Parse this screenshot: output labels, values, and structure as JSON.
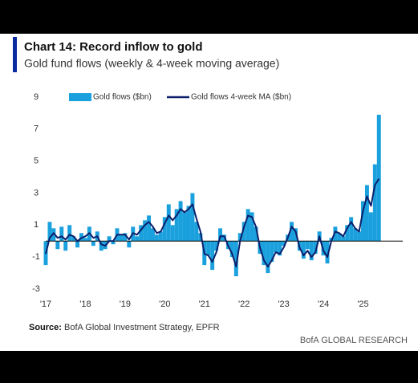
{
  "chart_data": {
    "type": "bar",
    "title": "Chart 14: Record inflow to gold",
    "subtitle": "Gold fund flows (weekly & 4-week moving average)",
    "source_label": "Source:",
    "source": "BofA Global Investment Strategy, EPFR",
    "brand": "BofA GLOBAL RESEARCH",
    "x": [
      2017.0,
      2017.1,
      2017.2,
      2017.3,
      2017.4,
      2017.5,
      2017.6,
      2017.7,
      2017.8,
      2017.9,
      2018.0,
      2018.1,
      2018.2,
      2018.3,
      2018.4,
      2018.5,
      2018.6,
      2018.7,
      2018.8,
      2018.9,
      2019.0,
      2019.1,
      2019.2,
      2019.3,
      2019.4,
      2019.5,
      2019.6,
      2019.7,
      2019.8,
      2019.9,
      2020.0,
      2020.1,
      2020.2,
      2020.3,
      2020.4,
      2020.5,
      2020.6,
      2020.7,
      2020.8,
      2020.9,
      2021.0,
      2021.1,
      2021.2,
      2021.3,
      2021.4,
      2021.5,
      2021.6,
      2021.7,
      2021.8,
      2021.9,
      2022.0,
      2022.1,
      2022.2,
      2022.3,
      2022.4,
      2022.5,
      2022.6,
      2022.7,
      2022.8,
      2022.9,
      2023.0,
      2023.1,
      2023.2,
      2023.3,
      2023.4,
      2023.5,
      2023.6,
      2023.7,
      2023.8,
      2023.9,
      2024.0,
      2024.1,
      2024.2,
      2024.3,
      2024.4,
      2024.5,
      2024.6,
      2024.7,
      2024.8,
      2024.9,
      2025.0,
      2025.1,
      2025.2,
      2025.3,
      2025.4
    ],
    "series": [
      {
        "name": "Gold flows ($bn)",
        "type": "bar",
        "color": "#1aa0dc",
        "values": [
          -1.5,
          1.2,
          0.8,
          -0.5,
          0.9,
          -0.6,
          1.0,
          0.3,
          -0.4,
          0.5,
          0.2,
          0.9,
          -0.3,
          0.6,
          -0.6,
          -0.5,
          0.3,
          -0.2,
          0.8,
          0.4,
          0.5,
          -0.4,
          0.9,
          0.3,
          1.0,
          1.3,
          1.6,
          0.8,
          0.4,
          0.6,
          1.5,
          2.3,
          1.0,
          2.0,
          2.5,
          1.8,
          2.2,
          3.0,
          1.2,
          0.5,
          -1.5,
          -0.9,
          -1.8,
          -0.6,
          0.8,
          0.4,
          -0.5,
          -1.0,
          -2.2,
          0.5,
          1.2,
          2.0,
          1.8,
          0.9,
          -0.8,
          -1.5,
          -2.0,
          -1.3,
          -0.7,
          -0.9,
          -0.3,
          0.4,
          1.2,
          0.8,
          -0.6,
          -1.1,
          -0.5,
          -1.2,
          -0.8,
          0.6,
          -0.9,
          -1.4,
          0.2,
          0.9,
          0.5,
          0.3,
          1.0,
          1.5,
          0.8,
          0.6,
          2.5,
          3.5,
          1.8,
          4.8,
          7.9
        ]
      },
      {
        "name": "Gold flows 4-week MA ($bn)",
        "type": "line",
        "color": "#0b1f6b",
        "values": [
          -0.8,
          0.2,
          0.5,
          0.2,
          0.3,
          0.1,
          0.4,
          0.3,
          0.0,
          0.2,
          0.3,
          0.5,
          0.2,
          0.3,
          -0.2,
          -0.3,
          0.0,
          0.0,
          0.4,
          0.4,
          0.4,
          0.1,
          0.5,
          0.4,
          0.7,
          1.0,
          1.2,
          0.9,
          0.5,
          0.6,
          1.1,
          1.6,
          1.3,
          1.6,
          2.0,
          1.8,
          2.0,
          2.3,
          1.4,
          0.6,
          -0.8,
          -0.9,
          -1.3,
          -0.7,
          0.3,
          0.3,
          -0.3,
          -0.8,
          -1.6,
          0.0,
          0.9,
          1.6,
          1.5,
          0.9,
          -0.4,
          -1.2,
          -1.6,
          -1.2,
          -0.7,
          -0.8,
          -0.4,
          0.2,
          0.9,
          0.6,
          -0.4,
          -0.9,
          -0.6,
          -1.0,
          -0.7,
          0.3,
          -0.6,
          -1.0,
          0.0,
          0.6,
          0.5,
          0.3,
          0.8,
          1.2,
          0.8,
          0.6,
          1.9,
          2.8,
          2.2,
          3.5,
          3.9
        ]
      }
    ],
    "xlim": [
      2017,
      2025.9
    ],
    "xticks": [
      {
        "value": 2017,
        "label": "'17"
      },
      {
        "value": 2018,
        "label": "'18"
      },
      {
        "value": 2019,
        "label": "'19"
      },
      {
        "value": 2020,
        "label": "'20"
      },
      {
        "value": 2021,
        "label": "'21"
      },
      {
        "value": 2022,
        "label": "'22"
      },
      {
        "value": 2023,
        "label": "'23"
      },
      {
        "value": 2024,
        "label": "'24"
      },
      {
        "value": 2025,
        "label": "'25"
      }
    ],
    "ylim": [
      -3,
      9
    ],
    "yticks": [
      -3,
      -1,
      1,
      3,
      5,
      7,
      9
    ],
    "grid": false,
    "legend": "top"
  }
}
